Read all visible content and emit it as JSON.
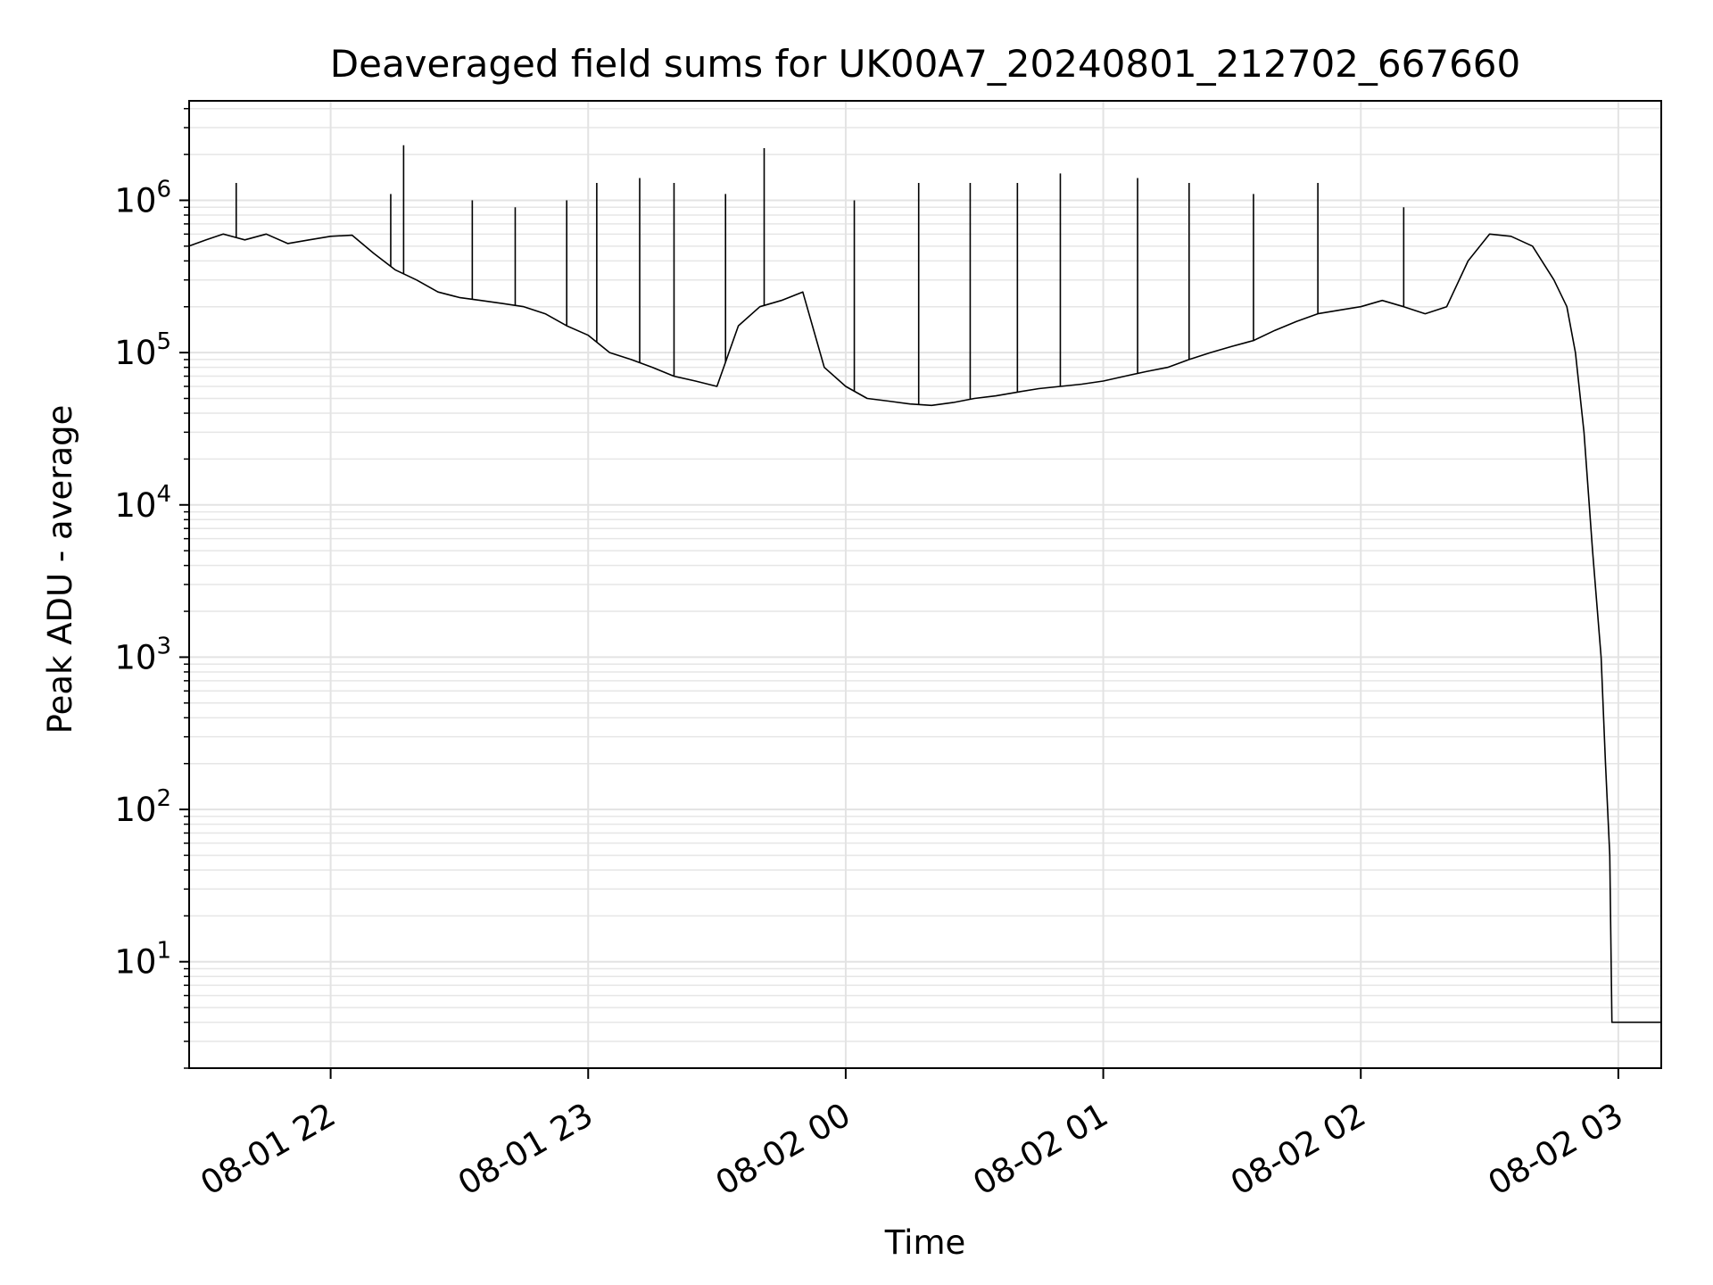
{
  "chart_data": {
    "type": "line",
    "title": "Deaveraged field sums for UK00A7_20240801_212702_667660",
    "xlabel": "Time",
    "ylabel": "Peak ADU - average",
    "yscale": "log",
    "xlim": [
      "2024-08-01 21:27:02",
      "2024-08-02 03:10:00"
    ],
    "ylim": [
      2,
      4500000
    ],
    "grid": true,
    "line_color": "#000000",
    "x_ticks": [
      {
        "label": "08-01 22",
        "value": "2024-08-01 22:00"
      },
      {
        "label": "08-01 23",
        "value": "2024-08-01 23:00"
      },
      {
        "label": "08-02 00",
        "value": "2024-08-02 00:00"
      },
      {
        "label": "08-02 01",
        "value": "2024-08-02 01:00"
      },
      {
        "label": "08-02 02",
        "value": "2024-08-02 02:00"
      },
      {
        "label": "08-02 03",
        "value": "2024-08-02 03:00"
      }
    ],
    "y_ticks": [
      {
        "base": "10",
        "exp": "1",
        "value": 10
      },
      {
        "base": "10",
        "exp": "2",
        "value": 100
      },
      {
        "base": "10",
        "exp": "3",
        "value": 1000
      },
      {
        "base": "10",
        "exp": "4",
        "value": 10000
      },
      {
        "base": "10",
        "exp": "5",
        "value": 100000
      },
      {
        "base": "10",
        "exp": "6",
        "value": 1000000
      }
    ],
    "series": [
      {
        "values": [
          [
            "2024-08-01 21:27",
            500000
          ],
          [
            "2024-08-01 21:31",
            550000
          ],
          [
            "2024-08-01 21:35",
            600000
          ],
          [
            "2024-08-01 21:40",
            550000
          ],
          [
            "2024-08-01 21:45",
            600000
          ],
          [
            "2024-08-01 21:50",
            520000
          ],
          [
            "2024-08-01 21:55",
            550000
          ],
          [
            "2024-08-01 22:00",
            580000
          ],
          [
            "2024-08-01 22:05",
            590000
          ],
          [
            "2024-08-01 22:10",
            450000
          ],
          [
            "2024-08-01 22:15",
            350000
          ],
          [
            "2024-08-01 22:20",
            300000
          ],
          [
            "2024-08-01 22:25",
            250000
          ],
          [
            "2024-08-01 22:30",
            230000
          ],
          [
            "2024-08-01 22:35",
            220000
          ],
          [
            "2024-08-01 22:40",
            210000
          ],
          [
            "2024-08-01 22:45",
            200000
          ],
          [
            "2024-08-01 22:50",
            180000
          ],
          [
            "2024-08-01 22:55",
            150000
          ],
          [
            "2024-08-01 23:00",
            130000
          ],
          [
            "2024-08-01 23:05",
            100000
          ],
          [
            "2024-08-01 23:10",
            90000
          ],
          [
            "2024-08-01 23:15",
            80000
          ],
          [
            "2024-08-01 23:20",
            70000
          ],
          [
            "2024-08-01 23:25",
            65000
          ],
          [
            "2024-08-01 23:30",
            60000
          ],
          [
            "2024-08-01 23:35",
            150000
          ],
          [
            "2024-08-01 23:40",
            200000
          ],
          [
            "2024-08-01 23:45",
            220000
          ],
          [
            "2024-08-01 23:50",
            250000
          ],
          [
            "2024-08-01 23:55",
            80000
          ],
          [
            "2024-08-02 00:00",
            60000
          ],
          [
            "2024-08-02 00:05",
            50000
          ],
          [
            "2024-08-02 00:10",
            48000
          ],
          [
            "2024-08-02 00:15",
            46000
          ],
          [
            "2024-08-02 00:20",
            45000
          ],
          [
            "2024-08-02 00:25",
            47000
          ],
          [
            "2024-08-02 00:30",
            50000
          ],
          [
            "2024-08-02 00:35",
            52000
          ],
          [
            "2024-08-02 00:40",
            55000
          ],
          [
            "2024-08-02 00:45",
            58000
          ],
          [
            "2024-08-02 00:50",
            60000
          ],
          [
            "2024-08-02 00:55",
            62000
          ],
          [
            "2024-08-02 01:00",
            65000
          ],
          [
            "2024-08-02 01:05",
            70000
          ],
          [
            "2024-08-02 01:10",
            75000
          ],
          [
            "2024-08-02 01:15",
            80000
          ],
          [
            "2024-08-02 01:20",
            90000
          ],
          [
            "2024-08-02 01:25",
            100000
          ],
          [
            "2024-08-02 01:30",
            110000
          ],
          [
            "2024-08-02 01:35",
            120000
          ],
          [
            "2024-08-02 01:40",
            140000
          ],
          [
            "2024-08-02 01:45",
            160000
          ],
          [
            "2024-08-02 01:50",
            180000
          ],
          [
            "2024-08-02 01:55",
            190000
          ],
          [
            "2024-08-02 02:00",
            200000
          ],
          [
            "2024-08-02 02:05",
            220000
          ],
          [
            "2024-08-02 02:10",
            200000
          ],
          [
            "2024-08-02 02:15",
            180000
          ],
          [
            "2024-08-02 02:20",
            200000
          ],
          [
            "2024-08-02 02:25",
            400000
          ],
          [
            "2024-08-02 02:30",
            600000
          ],
          [
            "2024-08-02 02:35",
            580000
          ],
          [
            "2024-08-02 02:40",
            500000
          ],
          [
            "2024-08-02 02:45",
            300000
          ],
          [
            "2024-08-02 02:48",
            200000
          ],
          [
            "2024-08-02 02:50",
            100000
          ],
          [
            "2024-08-02 02:52",
            30000
          ],
          [
            "2024-08-02 02:54",
            5000
          ],
          [
            "2024-08-02 02:56",
            1000
          ],
          [
            "2024-08-02 02:57",
            200
          ],
          [
            "2024-08-02 02:58",
            50
          ],
          [
            "2024-08-02 02:58:30",
            4
          ],
          [
            "2024-08-02 03:00",
            4
          ],
          [
            "2024-08-02 03:05",
            4
          ],
          [
            "2024-08-02 03:10",
            4
          ]
        ],
        "spikes": [
          [
            "2024-08-01 21:38",
            1300000
          ],
          [
            "2024-08-01 22:17",
            2300000
          ],
          [
            "2024-08-01 22:14",
            1100000
          ],
          [
            "2024-08-01 22:33",
            1000000
          ],
          [
            "2024-08-01 22:43",
            900000
          ],
          [
            "2024-08-01 22:55",
            1000000
          ],
          [
            "2024-08-01 23:02",
            1300000
          ],
          [
            "2024-08-01 23:12",
            1400000
          ],
          [
            "2024-08-01 23:20",
            1300000
          ],
          [
            "2024-08-01 23:32",
            1100000
          ],
          [
            "2024-08-01 23:41",
            2200000
          ],
          [
            "2024-08-02 00:02",
            1000000
          ],
          [
            "2024-08-02 00:17",
            1300000
          ],
          [
            "2024-08-02 00:29",
            1300000
          ],
          [
            "2024-08-02 00:40",
            1300000
          ],
          [
            "2024-08-02 00:50",
            1500000
          ],
          [
            "2024-08-02 01:08",
            1400000
          ],
          [
            "2024-08-02 01:20",
            1300000
          ],
          [
            "2024-08-02 01:35",
            1100000
          ],
          [
            "2024-08-02 01:50",
            1300000
          ],
          [
            "2024-08-02 02:10",
            900000
          ]
        ]
      }
    ]
  }
}
